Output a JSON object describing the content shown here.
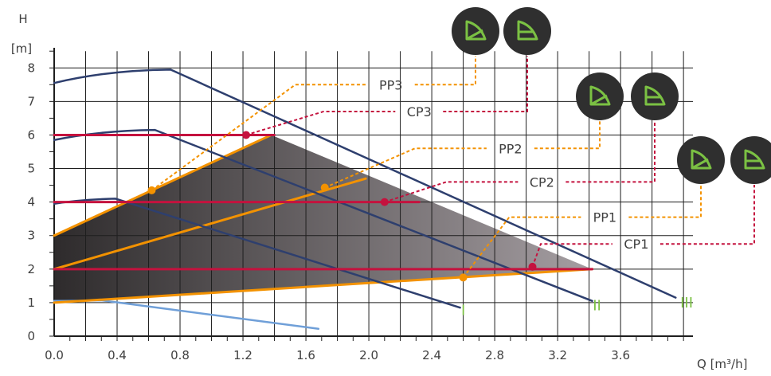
{
  "chart_data": {
    "type": "line",
    "title": "",
    "xlabel": "Q [m³/h]",
    "ylabel_line1": "H",
    "ylabel_line2": "[m]",
    "xlim": [
      0,
      4.06
    ],
    "ylim": [
      0,
      8.6
    ],
    "x_ticks": [
      "0.0",
      "0.4",
      "0.8",
      "1.2",
      "1.6",
      "2.0",
      "2.4",
      "2.8",
      "3.2",
      "3.6"
    ],
    "y_ticks": [
      "0",
      "1",
      "2",
      "3",
      "4",
      "5",
      "6",
      "7",
      "8"
    ],
    "grid": true,
    "colors": {
      "max_curve": "#2e3f6e",
      "min_curve": "#6f9fd8",
      "proportional": "#f39200",
      "constant": "#c4123e",
      "region_dark": "#2e2b2c",
      "region_light": "#a59ea2",
      "icon_bg": "#2f2f2f",
      "icon_fg": "#7bc143",
      "speed_label": "#7bc143"
    },
    "series": [
      {
        "name": "I",
        "role": "max-curve",
        "points": [
          [
            0,
            3.95
          ],
          [
            0.39,
            4.1
          ],
          [
            2.58,
            0.85
          ]
        ]
      },
      {
        "name": "II",
        "role": "max-curve",
        "points": [
          [
            0,
            5.85
          ],
          [
            0.64,
            6.15
          ],
          [
            3.42,
            1.05
          ]
        ]
      },
      {
        "name": "III",
        "role": "max-curve",
        "points": [
          [
            0,
            7.55
          ],
          [
            0.74,
            7.95
          ],
          [
            3.95,
            1.15
          ]
        ]
      },
      {
        "name": "",
        "role": "min-curve",
        "points": [
          [
            0,
            1.05
          ],
          [
            0.3,
            1.07
          ],
          [
            1.68,
            0.22
          ]
        ]
      },
      {
        "name": "PP3",
        "role": "proportional",
        "points": [
          [
            0,
            3.0
          ],
          [
            1.38,
            6.0
          ]
        ]
      },
      {
        "name": "PP2",
        "role": "proportional",
        "points": [
          [
            0,
            2.0
          ],
          [
            1.98,
            4.7
          ]
        ]
      },
      {
        "name": "PP1",
        "role": "proportional",
        "points": [
          [
            0,
            1.0
          ],
          [
            3.42,
            2.0
          ]
        ]
      },
      {
        "name": "CP3",
        "role": "constant",
        "points": [
          [
            0,
            6.0
          ],
          [
            1.4,
            6.0
          ]
        ]
      },
      {
        "name": "CP2",
        "role": "constant",
        "points": [
          [
            0,
            4.0
          ],
          [
            2.32,
            4.0
          ]
        ]
      },
      {
        "name": "CP1",
        "role": "constant",
        "points": [
          [
            0,
            2.0
          ],
          [
            3.42,
            2.0
          ]
        ]
      }
    ],
    "operating_region": [
      [
        0,
        3.0
      ],
      [
        1.38,
        6.0
      ],
      [
        3.42,
        2.0
      ],
      [
        0,
        1.0
      ]
    ],
    "callouts": [
      {
        "label": "PP3",
        "color": "proportional",
        "marker": [
          0.62,
          4.35
        ],
        "text_at": [
          2.14,
          7.5
        ],
        "icon": "proportional-pressure-icon"
      },
      {
        "label": "CP3",
        "color": "constant",
        "marker": [
          1.22,
          6.0
        ],
        "text_at": [
          2.32,
          6.7
        ],
        "icon": "constant-pressure-icon"
      },
      {
        "label": "PP2",
        "color": "proportional",
        "marker": [
          1.72,
          4.43
        ],
        "text_at": [
          2.9,
          5.6
        ],
        "icon": "proportional-pressure-icon"
      },
      {
        "label": "CP2",
        "color": "constant",
        "marker": [
          2.1,
          4.0
        ],
        "text_at": [
          3.1,
          4.6
        ],
        "icon": "constant-pressure-icon"
      },
      {
        "label": "PP1",
        "color": "proportional",
        "marker": [
          2.6,
          1.75
        ],
        "text_at": [
          3.5,
          3.55
        ],
        "icon": "proportional-pressure-icon"
      },
      {
        "label": "CP1",
        "color": "constant",
        "marker": [
          3.04,
          2.07
        ],
        "text_at": [
          3.7,
          2.75
        ],
        "icon": "constant-pressure-icon"
      }
    ],
    "speed_labels": [
      {
        "text": "I",
        "at": [
          2.6,
          0.77
        ]
      },
      {
        "text": "II",
        "at": [
          3.45,
          0.92
        ]
      },
      {
        "text": "III",
        "at": [
          4.02,
          1.0
        ]
      }
    ]
  }
}
